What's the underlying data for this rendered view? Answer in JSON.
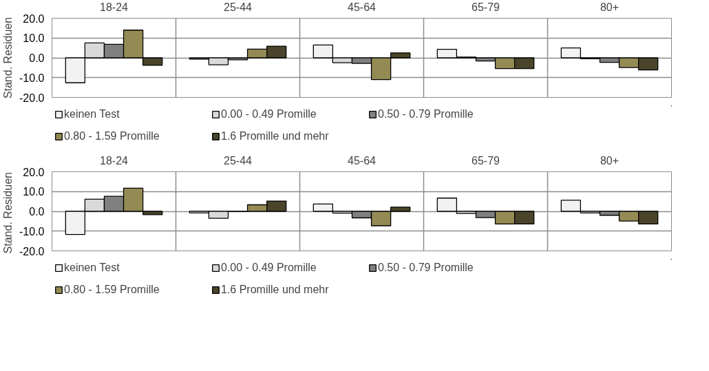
{
  "chart_data": [
    {
      "type": "bar",
      "ylabel": "Stand. Residuen",
      "categories": [
        "18-24",
        "25-44",
        "45-64",
        "65-79",
        "80+"
      ],
      "series": [
        {
          "name": "keinen Test",
          "color": "#f2f2f2",
          "values": [
            -12.6,
            -0.6,
            6.5,
            4.3,
            5.0
          ]
        },
        {
          "name": "0.00 - 0.49 Promille",
          "color": "#d9d9d9",
          "values": [
            7.5,
            -3.5,
            -2.5,
            0.4,
            -0.5
          ]
        },
        {
          "name": "0.50 - 0.79 Promille",
          "color": "#808080",
          "values": [
            6.8,
            -1.0,
            -2.8,
            -1.6,
            -2.3
          ]
        },
        {
          "name": "0.80 - 1.59 Promille",
          "color": "#948a54",
          "values": [
            14.0,
            4.4,
            -11.0,
            -5.4,
            -4.9
          ]
        },
        {
          "name": "1.6 Promille und mehr",
          "color": "#4a442a",
          "values": [
            -3.8,
            5.9,
            2.5,
            -5.4,
            -6.1
          ]
        }
      ],
      "ylim": [
        -20,
        20
      ],
      "yticks": [
        {
          "value": -20,
          "label": "-20.0"
        },
        {
          "value": -10,
          "label": "-10.0"
        },
        {
          "value": 0,
          "label": "0.0"
        },
        {
          "value": 10,
          "label": "10.0"
        },
        {
          "value": 20,
          "label": "20.0"
        }
      ],
      "grid": true,
      "legend": "bottom"
    },
    {
      "type": "bar",
      "ylabel": "Stand.  Residuen",
      "categories": [
        "18-24",
        "25-44",
        "45-64",
        "65-79",
        "80+"
      ],
      "series": [
        {
          "name": "keinen Test",
          "color": "#f2f2f2",
          "values": [
            -11.7,
            -0.8,
            3.7,
            6.7,
            5.6
          ]
        },
        {
          "name": "0.00 - 0.49 Promille",
          "color": "#d9d9d9",
          "values": [
            6.1,
            -3.5,
            -0.9,
            -1.1,
            -0.8
          ]
        },
        {
          "name": "0.50 - 0.79 Promille",
          "color": "#808080",
          "values": [
            7.6,
            -0.1,
            -3.3,
            -3.2,
            -2.0
          ]
        },
        {
          "name": "0.80 - 1.59 Promille",
          "color": "#948a54",
          "values": [
            11.7,
            3.3,
            -7.3,
            -6.4,
            -4.9
          ]
        },
        {
          "name": "1.6 Promille und mehr",
          "color": "#4a442a",
          "values": [
            -1.7,
            5.2,
            2.1,
            -6.4,
            -6.4
          ]
        }
      ],
      "ylim": [
        -20,
        20
      ],
      "yticks": [
        {
          "value": -20,
          "label": "-20.0"
        },
        {
          "value": -10,
          "label": "-10.0"
        },
        {
          "value": 0,
          "label": "0.0"
        },
        {
          "value": 10,
          "label": "10.0"
        },
        {
          "value": 20,
          "label": "20.0"
        }
      ],
      "grid": true,
      "legend": "bottom"
    }
  ]
}
